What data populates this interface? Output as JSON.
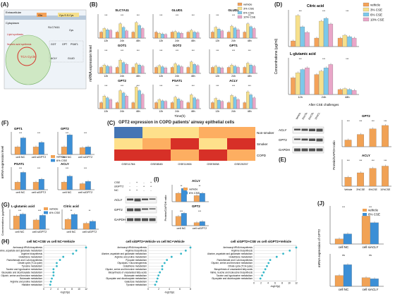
{
  "colors": {
    "vehicle": "#f4a259",
    "cse3": "#f6e08c",
    "cse6": "#7cc8ea",
    "cse10": "#e9a6c8",
    "v2": "#f1a255",
    "cse6b": "#3c8fd6",
    "dot": "#35b7c8",
    "heatRed": "#d73027",
    "heatOrg": "#fdae61",
    "heatYel": "#fee08b",
    "heatBlue": "#4575b4"
  },
  "A": {
    "label": "(A)",
    "extracellular": "Extracellular",
    "cytoplasm": "Cytoplasm",
    "glu": "Glu",
    "cys": "Cys-S-S-Cys",
    "slc": "SLC7A11",
    "lipid": "Lipid synthesis",
    "nucleic": "Nucleic acid synthesis",
    "tca": "TCA Cycle",
    "got": "GOT",
    "gpt": "GPT",
    "psat": "PSAT1",
    "acly": "ACLY",
    "glud": "GLUD",
    "cys2": "Cys"
  },
  "B": {
    "label": "(B)",
    "ylabel": "mRNA expression level",
    "xlabel": "Time(h)",
    "legend": [
      "vehicle",
      "3% CSE",
      "6% CSE",
      "10% CSE"
    ],
    "titles": [
      "SLC7A11",
      "GLUD1",
      "GLUD2",
      "GOT1",
      "GOT2",
      "GPT1",
      "GPT2",
      "PSAT1",
      "ACLY"
    ],
    "ticks": [
      "12h",
      "24h",
      "48h"
    ]
  },
  "C": {
    "label": "(C)",
    "title": "GPT2 expression in COPD patients' airway epithelial cells",
    "rows": [
      "Non-smoker",
      "Smoker",
      "COPD"
    ],
    "cols": [
      "GSE11784",
      "GSE8545",
      "GSE11906",
      "GSE5058",
      "GSE20257"
    ]
  },
  "D": {
    "label": "(D)",
    "ylabel": "Concentrations (μg/ml)",
    "titles": [
      "Citric acid",
      "L-glutamic acid"
    ],
    "legend": [
      "vehicle",
      "3% CSE",
      "6% CSE",
      "10% CSE"
    ],
    "ticks": [
      "12h",
      "24h",
      "48h"
    ],
    "xlabel": "After CSE challenges"
  },
  "E": {
    "label": "(E)",
    "ylabel": "Protein/GAPDH ratio",
    "blots": [
      "ACLY",
      "GPT2",
      "GAPDH"
    ],
    "titles": [
      "GPT2",
      "ACLY"
    ],
    "lanes": [
      "Vehicle",
      "3%CSE",
      "6%CSE",
      "10%CSE"
    ]
  },
  "F": {
    "label": "(F)",
    "ylabel": "mRNA expression level",
    "legend": [
      "vehicle",
      "6% CSE"
    ],
    "titles": [
      "GPT1",
      "GPT2",
      "PSAT1",
      "ACLY"
    ],
    "ticks": [
      "cell NC",
      "cell siGPT2"
    ]
  },
  "G": {
    "label": "(G)",
    "ylabel": "Concentrations (μg/ml)",
    "titles": [
      "L-glutamic acid",
      "Citric acid"
    ],
    "legend": [
      "vehicle",
      "6% CSE"
    ],
    "ticks": [
      "cell NC",
      "cell siGPT2"
    ]
  },
  "H": {
    "label": "(H)",
    "titles": [
      "cell NC+CSE vs cell NC+Vehicle",
      "cell siGPT2+Vehicle vs cell NC+Vehicle",
      "cell siGPT2+CSE vs cell siGPT2+Vehicle"
    ],
    "xlabel": "-log10(p)",
    "terms1": [
      "Aminoacyl-tRNA biosynthesis",
      "Alanine, aspartate and glutamate metabolism",
      "Arginine biosynthesis",
      "Glutathione metabolism",
      "Pantothenate and CoA biosynthesis",
      "Citrate cycle (TCA cycle)",
      "Tyrosine metabolism",
      "Taurine and hypotaurine metabolism",
      "Glyoxylate and dicarboxylate metabolism",
      "Glycine, serine and threonine metabolism",
      "Butanoate metabolism",
      "Arginine and proline metabolism",
      "Histidine metabolism"
    ],
    "terms2": [
      "Aminoacyl-tRNA biosynthesis",
      "Arginine biosynthesis",
      "Alanine, aspartate and glutamate metabolism",
      "Arginine and proline metabolism",
      "Pyruvate metabolism",
      "Glycolysis / Gluconeogenesis",
      "Glutathione metabolism",
      "Glycine, serine and threonine metabolism",
      "Biosynthesis of unsaturated fatty acids",
      "Butanoate metabolism",
      "Glyoxylate and dicarboxylate metabolism",
      "Galactose metabolism",
      "Tyrosine metabolism"
    ],
    "terms3": [
      "Aminoacyl-tRNA biosynthesis",
      "Arginine biosynthesis",
      "Alanine, aspartate and glutamate metabolism",
      "Glutathione metabolism",
      "Pantothenate and CoA biosynthesis",
      "Glycine, serine and threonine metabolism",
      "Citrate cycle (TCA cycle)",
      "Biosynthesis of unsaturated fatty acids",
      "Valine, leucine and isoleucine biosynthesis",
      "Taurine and hypotaurine metabolism",
      "Glyoxylate and dicarboxylate metabolism"
    ],
    "v1": [
      13,
      10,
      9,
      6,
      5,
      4,
      4,
      3,
      3,
      3,
      2.5,
      2.2,
      2
    ],
    "v2": [
      9,
      8,
      7,
      5,
      4,
      3.5,
      3,
      3,
      2.5,
      2.2,
      2,
      1.8,
      1.5
    ],
    "v3": [
      13,
      11,
      9,
      7,
      5,
      4.5,
      4,
      3.5,
      3,
      2.5,
      2
    ],
    "xt1": [
      "0",
      "2",
      "4",
      "6",
      "8",
      "10",
      "12"
    ],
    "xt2": [
      "0",
      "2",
      "4",
      "6",
      "8"
    ],
    "xt3": [
      "0",
      "2",
      "4",
      "6",
      "8",
      "10",
      "12"
    ]
  },
  "I": {
    "label": "(I)",
    "rows": [
      "CSE",
      "siGPT2",
      "NC"
    ],
    "signs": [
      [
        "-",
        "+",
        "-",
        "+"
      ],
      [
        "-",
        "-",
        "+",
        "+"
      ],
      [
        "+",
        "+",
        "-",
        "-"
      ]
    ],
    "blots": [
      "ACLY",
      "GPT2",
      "GAPDH"
    ],
    "ylabel": "Protein/GAPDH ratio",
    "titles": [
      "ACLY",
      "GPT2"
    ],
    "legend": [
      "vehicle",
      "6% CSE"
    ],
    "ticks": [
      "cell NC",
      "cell siGPT2"
    ]
  },
  "J": {
    "label": "(J)",
    "ylabel": "mRNA expression of GPT2",
    "legend": [
      "vehicle",
      "6% CSE"
    ],
    "ticks1": [
      "cell NC",
      "cell siACLY"
    ],
    "ticks2": [
      "cell NC",
      "cell siACLY"
    ]
  },
  "stars": {
    "s3": "***",
    "s2": "**",
    "s1": "*",
    "ns": "ns"
  }
}
